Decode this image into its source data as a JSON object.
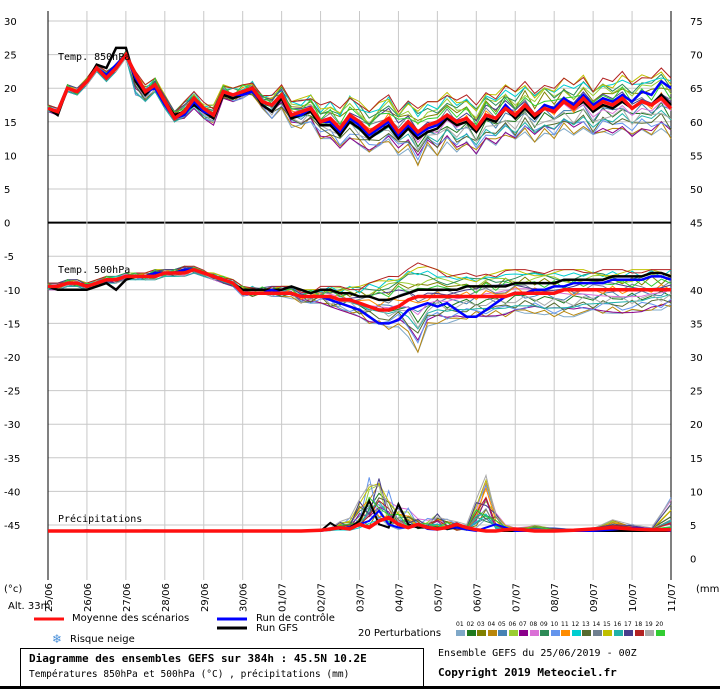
{
  "chart_data": {
    "type": "line",
    "x_dates": [
      "25/06",
      "26/06",
      "27/06",
      "28/06",
      "29/06",
      "30/06",
      "01/07",
      "02/07",
      "03/07",
      "04/07",
      "05/07",
      "06/07",
      "07/07",
      "08/07",
      "09/07",
      "10/07",
      "11/07"
    ],
    "left_ticks": [
      "30",
      "25",
      "20",
      "15",
      "10",
      "5",
      "0",
      "-5",
      "-10",
      "-15",
      "-20",
      "-25",
      "-30",
      "-35",
      "-40",
      "-45"
    ],
    "right_ticks_top": [
      "75",
      "70",
      "65",
      "60",
      "55",
      "50",
      "45"
    ],
    "right_ticks_bottom": [
      "40",
      "35",
      "30",
      "25",
      "20",
      "15",
      "10",
      "5",
      "0"
    ],
    "left_unit": "(°c)",
    "right_unit": "(mm)",
    "altitude": "Alt. 33m",
    "panels": [
      {
        "label": "Temp. 850hPa",
        "x_days": [
          0,
          0.25,
          0.5,
          0.75,
          1,
          1.25,
          1.5,
          1.75,
          2,
          2.25,
          2.5,
          2.75,
          3,
          3.25,
          3.5,
          3.75,
          4,
          4.25,
          4.5,
          4.75,
          5,
          5.25,
          5.5,
          5.75,
          6,
          6.25,
          6.5,
          6.75,
          7,
          7.25,
          7.5,
          7.75,
          8,
          8.25,
          8.5,
          8.75,
          9,
          9.25,
          9.5,
          9.75,
          10,
          10.25,
          10.5,
          10.75,
          11,
          11.25,
          11.5,
          11.75,
          12,
          12.25,
          12.5,
          12.75,
          13,
          13.25,
          13.5,
          13.75,
          14,
          14.25,
          14.5,
          14.75,
          15,
          15.25,
          15.5,
          15.75,
          16
        ],
        "mean": [
          17,
          16.5,
          20,
          19.5,
          21,
          23,
          21.5,
          23,
          25,
          22,
          19.5,
          20.5,
          18,
          15.5,
          16.5,
          18.5,
          17,
          16,
          19.5,
          19,
          19.5,
          20,
          18,
          17.5,
          19,
          16,
          16.5,
          17,
          15,
          15.5,
          14,
          16,
          15,
          13.5,
          14.5,
          15.5,
          13.5,
          15,
          13.5,
          14.5,
          15,
          16,
          15,
          15.5,
          14,
          16,
          15.5,
          17,
          16,
          17.5,
          16,
          17,
          16.5,
          18,
          17,
          18.5,
          17,
          18,
          17.5,
          18.5,
          17,
          18,
          17.5,
          18.5,
          17
        ],
        "control": [
          17,
          16.5,
          20,
          19.5,
          21,
          23,
          22,
          23.5,
          25,
          21.5,
          19.5,
          20,
          17.5,
          15.5,
          16,
          18,
          16.5,
          16,
          19.5,
          19,
          19,
          19.5,
          18,
          17.5,
          19,
          16,
          16,
          17,
          15,
          15,
          13.5,
          15.5,
          14.5,
          13,
          14,
          15,
          13,
          14.5,
          13,
          14,
          14.5,
          16,
          15,
          15.5,
          14,
          16,
          15.5,
          17.5,
          16,
          17.5,
          16,
          17.5,
          17,
          18.5,
          17.5,
          19,
          17.5,
          18.5,
          18,
          19,
          18,
          19.5,
          19,
          21,
          20
        ],
        "gfs": [
          17,
          16,
          20,
          19.5,
          21,
          23.5,
          23,
          26,
          26,
          21,
          19,
          20.5,
          18,
          16,
          16.5,
          17.5,
          16.5,
          15.5,
          19,
          18.5,
          19,
          20,
          17.5,
          16.5,
          18.5,
          15.5,
          16,
          16.5,
          14.5,
          14.5,
          13,
          15,
          14,
          12.5,
          13.5,
          14.5,
          12.5,
          14,
          12.5,
          13.5,
          14,
          15.5,
          14.5,
          15,
          13.5,
          15.5,
          15,
          17,
          15.5,
          17,
          15.5,
          17,
          16.5,
          18,
          17,
          18,
          16.5,
          17.5,
          17,
          18,
          17,
          18,
          17.5,
          19,
          17.5
        ],
        "pert_max": [
          17.5,
          17,
          20.5,
          20,
          21.5,
          23.5,
          22.5,
          23.5,
          25.5,
          22.5,
          20.5,
          21.5,
          19,
          16.5,
          18,
          19.5,
          18,
          17.5,
          20.5,
          20,
          20.5,
          21,
          19.5,
          19,
          20.5,
          18,
          18.5,
          19,
          17.5,
          18,
          17,
          19,
          18,
          16.5,
          18,
          19,
          17,
          18.5,
          17,
          18,
          18,
          19.5,
          18.5,
          19,
          17.5,
          19.5,
          19,
          20.5,
          19.5,
          21,
          19.5,
          21,
          20,
          21.5,
          20.5,
          22,
          20,
          21.5,
          21,
          22.5,
          21,
          22,
          21.5,
          23,
          21.5
        ],
        "pert_min": [
          16.5,
          16,
          19.5,
          19,
          20.5,
          22.5,
          21,
          22.5,
          24.5,
          19,
          18,
          19.5,
          17,
          15,
          15.5,
          17,
          15.5,
          14.5,
          18.5,
          18,
          18.5,
          19,
          16.5,
          15.5,
          17,
          14,
          14,
          15,
          12.5,
          12.5,
          11,
          12.5,
          11.5,
          10.5,
          11,
          12,
          10,
          11,
          8.5,
          11,
          10,
          12,
          10.5,
          11.5,
          10,
          12.5,
          11.5,
          13,
          12,
          13.5,
          12,
          13,
          12.5,
          14,
          13,
          14,
          12.5,
          13.5,
          13,
          14,
          12.5,
          13.5,
          13,
          14,
          12.5
        ]
      },
      {
        "label": "Temp. 500hPa",
        "x_days": [
          0,
          0.25,
          0.5,
          0.75,
          1,
          1.25,
          1.5,
          1.75,
          2,
          2.25,
          2.5,
          2.75,
          3,
          3.25,
          3.5,
          3.75,
          4,
          4.25,
          4.5,
          4.75,
          5,
          5.25,
          5.5,
          5.75,
          6,
          6.25,
          6.5,
          6.75,
          7,
          7.25,
          7.5,
          7.75,
          8,
          8.25,
          8.5,
          8.75,
          9,
          9.25,
          9.5,
          9.75,
          10,
          10.25,
          10.5,
          10.75,
          11,
          11.25,
          11.5,
          11.75,
          12,
          12.25,
          12.5,
          12.75,
          13,
          13.25,
          13.5,
          13.75,
          14,
          14.25,
          14.5,
          14.75,
          15,
          15.25,
          15.5,
          15.75,
          16
        ],
        "mean": [
          -9.5,
          -9.5,
          -9,
          -9,
          -9.5,
          -9,
          -8.5,
          -8.5,
          -8,
          -8,
          -8,
          -8,
          -7.5,
          -7.5,
          -7.5,
          -7,
          -7.5,
          -8,
          -8.5,
          -9,
          -10.5,
          -10.5,
          -10.5,
          -10.5,
          -10.5,
          -10.5,
          -11,
          -11,
          -11,
          -11,
          -11.5,
          -11.5,
          -12,
          -12.5,
          -13,
          -13,
          -12.5,
          -11.5,
          -11,
          -11,
          -11,
          -11,
          -11,
          -11,
          -11,
          -11,
          -11,
          -11,
          -10.5,
          -10.5,
          -10.5,
          -10.5,
          -10.5,
          -10,
          -10,
          -10,
          -10,
          -10,
          -10,
          -10,
          -10,
          -10,
          -10,
          -10,
          -10
        ],
        "control": [
          -9.5,
          -9.5,
          -9,
          -9,
          -9.5,
          -9,
          -8.5,
          -8.5,
          -8,
          -8,
          -8,
          -7.5,
          -7.5,
          -7.5,
          -7,
          -7,
          -7.5,
          -8,
          -8.5,
          -9,
          -10.5,
          -10.5,
          -10.5,
          -10,
          -10.5,
          -10.5,
          -11,
          -11,
          -11,
          -11.5,
          -12,
          -12.5,
          -13,
          -14,
          -15,
          -15,
          -14.5,
          -13,
          -12.5,
          -12,
          -12.5,
          -12,
          -13,
          -14,
          -14,
          -13,
          -12,
          -11,
          -10.5,
          -10.5,
          -10,
          -10,
          -9.5,
          -9.5,
          -9,
          -9,
          -9,
          -9,
          -8.5,
          -8.5,
          -8.5,
          -8.5,
          -8,
          -8,
          -8.5
        ],
        "gfs": [
          -9.5,
          -10,
          -10,
          -10,
          -10,
          -9.5,
          -9,
          -10,
          -8.5,
          -8,
          -8,
          -7.5,
          -7.5,
          -7.5,
          -7,
          -7,
          -7.5,
          -8,
          -8.5,
          -9,
          -10,
          -10,
          -10,
          -10,
          -10,
          -9.5,
          -10,
          -10.5,
          -10,
          -10,
          -10.5,
          -10.5,
          -11,
          -11,
          -11.5,
          -11.5,
          -11,
          -10.5,
          -10,
          -10,
          -10,
          -10,
          -10,
          -9.5,
          -9.5,
          -9.5,
          -9.5,
          -9.5,
          -9,
          -9,
          -9,
          -9,
          -9,
          -8.5,
          -8.5,
          -8.5,
          -8.5,
          -8.5,
          -8,
          -8,
          -8,
          -8,
          -7.5,
          -7.5,
          -8
        ],
        "pert_max": [
          -9,
          -9,
          -8.5,
          -8.5,
          -9,
          -8.5,
          -8,
          -8,
          -7.5,
          -7.5,
          -7.5,
          -7,
          -7,
          -7,
          -6.5,
          -6.5,
          -7,
          -7.5,
          -8,
          -8.5,
          -9.5,
          -9.5,
          -9.5,
          -9.5,
          -9.5,
          -9.5,
          -10,
          -10,
          -9.5,
          -9.5,
          -9.5,
          -9.5,
          -9.5,
          -9,
          -8.5,
          -8,
          -7.5,
          -6.5,
          -6,
          -6.5,
          -7,
          -7.5,
          -7.5,
          -7.5,
          -8,
          -7.5,
          -7.5,
          -7,
          -7,
          -7,
          -7,
          -7,
          -7,
          -7,
          -7,
          -7,
          -7,
          -7,
          -7,
          -7,
          -7,
          -7,
          -7,
          -7,
          -7
        ],
        "pert_min": [
          -10,
          -10,
          -9.5,
          -9.5,
          -10,
          -9.5,
          -9,
          -9,
          -8.5,
          -8.5,
          -8.5,
          -8.5,
          -8,
          -8,
          -8,
          -7.5,
          -8,
          -8.5,
          -9,
          -9.5,
          -11,
          -11,
          -11,
          -11,
          -11,
          -11.5,
          -12,
          -12,
          -12,
          -12.5,
          -13,
          -13.5,
          -14,
          -15,
          -15.5,
          -16,
          -15.5,
          -17,
          -19.5,
          -16,
          -15,
          -15,
          -14.5,
          -14.5,
          -14,
          -14,
          -14,
          -14,
          -13.5,
          -13.5,
          -13.5,
          -14,
          -14,
          -14,
          -14,
          -13.5,
          -13.5,
          -13.5,
          -13.5,
          -13.5,
          -13.5,
          -13.5,
          -13,
          -13,
          -12.5
        ]
      }
    ],
    "precip_mm": {
      "x_days": [
        0,
        0.5,
        1,
        1.5,
        2,
        2.5,
        3,
        3.5,
        4,
        4.5,
        5,
        5.5,
        6,
        6.5,
        7,
        7.25,
        7.5,
        7.75,
        8,
        8.25,
        8.5,
        8.75,
        9,
        9.25,
        9.5,
        9.75,
        10,
        10.25,
        10.5,
        10.75,
        11,
        11.25,
        11.5,
        11.75,
        12,
        12.5,
        13,
        13.5,
        14,
        14.5,
        15,
        15.5,
        16
      ],
      "mean": [
        0,
        0,
        0,
        0,
        0,
        0,
        0,
        0,
        0,
        0,
        0,
        0,
        0,
        0,
        0.1,
        0.3,
        0.5,
        0.3,
        1,
        0.5,
        1.5,
        2,
        1,
        0.5,
        1,
        0.5,
        0.3,
        0.5,
        1,
        0.5,
        0.2,
        0,
        0,
        0.2,
        0.3,
        0,
        0,
        0.1,
        0.3,
        0.5,
        0.3,
        0.2,
        0.2
      ],
      "control": [
        0,
        0,
        0,
        0,
        0,
        0,
        0,
        0,
        0,
        0,
        0,
        0,
        0,
        0,
        0,
        0.2,
        0.5,
        0.5,
        1,
        1.5,
        3,
        1,
        0.5,
        0.5,
        1,
        0.3,
        0.2,
        0.5,
        0.5,
        0.2,
        0,
        0.5,
        1,
        0.5,
        0,
        0,
        0,
        0,
        0,
        0.2,
        0.5,
        0.3,
        0
      ],
      "gfs": [
        0,
        0,
        0,
        0,
        0,
        0,
        0,
        0,
        0,
        0,
        0,
        0,
        0,
        0,
        0,
        1.2,
        0.3,
        0.5,
        1.5,
        4.5,
        1,
        0.5,
        4,
        1,
        0.5,
        0.5,
        0.5,
        0.3,
        0.5,
        0.5,
        0.2,
        0,
        0,
        0,
        0,
        0,
        0,
        0,
        0,
        0,
        0,
        0,
        0
      ],
      "pert_max": [
        0,
        0,
        0.2,
        0,
        0,
        0.2,
        0.1,
        0,
        0,
        0,
        0,
        0,
        0,
        0,
        0.2,
        0.5,
        1.5,
        2,
        5,
        8,
        9,
        6,
        4,
        3.5,
        2,
        2,
        3,
        2,
        1.5,
        1,
        5,
        9.5,
        3,
        1,
        0.5,
        1,
        0.5,
        0.5,
        0.5,
        2,
        1,
        0.5,
        5
      ]
    },
    "legend": {
      "mean": "Moyenne des scénarios",
      "control": "Run de contrôle",
      "gfs": "Run GFS",
      "snow": "Risque neige",
      "perturbations": "20 Perturbations",
      "pert_numbers": [
        "01",
        "02",
        "03",
        "04",
        "05",
        "06",
        "07",
        "08",
        "09",
        "10",
        "11",
        "12",
        "13",
        "14",
        "15",
        "16",
        "17",
        "18",
        "19",
        "20"
      ]
    },
    "colors": {
      "mean": "#ff1010",
      "control": "#0000ff",
      "gfs": "#000000",
      "perts": [
        "#7fa8c8",
        "#1f7a1f",
        "#808000",
        "#b8860b",
        "#4682b4",
        "#9acd32",
        "#8b008b",
        "#da70d6",
        "#2e8b57",
        "#6495ed",
        "#ff8c00",
        "#00ced1",
        "#556b2f",
        "#708090",
        "#c0c000",
        "#20b2aa",
        "#483d8b",
        "#b22222",
        "#a9a9a9",
        "#32cd32"
      ]
    }
  },
  "precip_label": "Précipitations",
  "footer": {
    "title": "Diagramme des ensembles GEFS sur 384h : 45.5N 10.2E",
    "subtitle": "Températures 850hPa et 500hPa (°C) , précipitations (mm)",
    "run_info": "Ensemble GEFS du 25/06/2019 - 00Z",
    "copyright": "Copyright 2019 Meteociel.fr"
  }
}
